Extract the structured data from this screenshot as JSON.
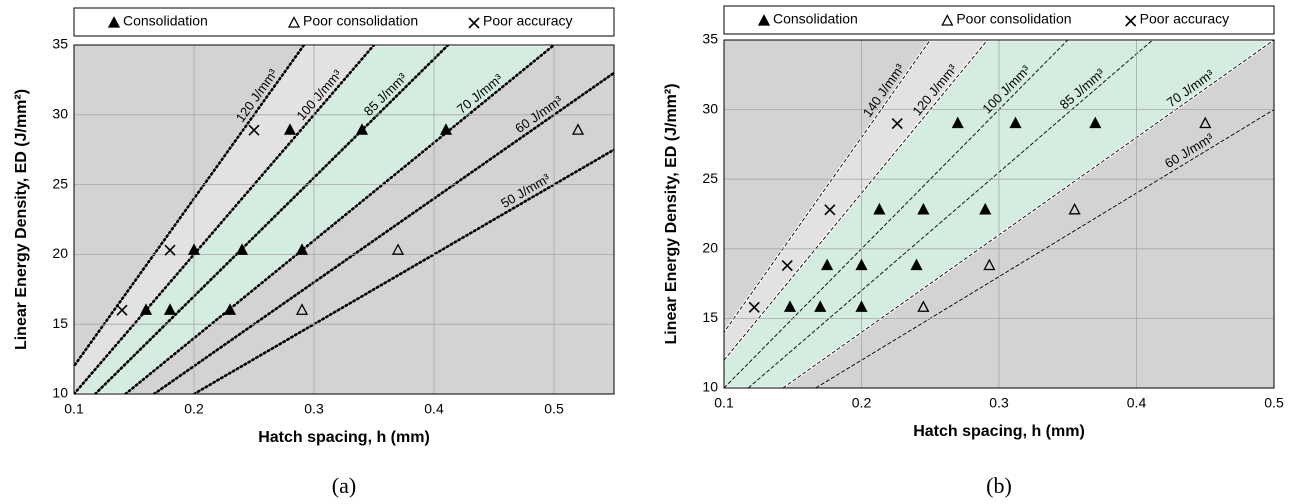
{
  "chart_data": [
    {
      "type": "scatter",
      "caption": "(a)",
      "x_label": "Hatch spacing, h (mm)",
      "y_label": "Linear Energy Density, ED (J/mm²)",
      "xlim": [
        0.1,
        0.55
      ],
      "xticks": [
        0.1,
        0.2,
        0.3,
        0.4,
        0.5
      ],
      "ylim": [
        10,
        35
      ],
      "yticks": [
        10,
        15,
        20,
        25,
        30,
        35
      ],
      "grid": true,
      "line_style": "dotted",
      "lines": [
        {
          "label": "120 J/mm³",
          "value": 120
        },
        {
          "label": "100 J/mm³",
          "value": 100
        },
        {
          "label": "85 J/mm³",
          "value": 85
        },
        {
          "label": "70 J/mm³",
          "value": 70
        },
        {
          "label": "60 J/mm³",
          "value": 60
        },
        {
          "label": "50 J/mm³",
          "value": 50
        }
      ],
      "series": [
        {
          "name": "Consolidation",
          "color": "#000000",
          "marker": "triangle-filled",
          "x": [
            0.16,
            0.18,
            0.23,
            0.2,
            0.24,
            0.29,
            0.28,
            0.34,
            0.41
          ],
          "values": [
            16,
            16,
            16,
            20.3,
            20.3,
            20.3,
            28.9,
            28.9,
            28.9
          ]
        },
        {
          "name": "Poor consolidation",
          "color": "#000000",
          "marker": "triangle-open",
          "x": [
            0.29,
            0.37,
            0.52
          ],
          "values": [
            16,
            20.3,
            28.9
          ]
        },
        {
          "name": "Poor accuracy",
          "color": "#000000",
          "marker": "x",
          "x": [
            0.14,
            0.18,
            0.25
          ],
          "values": [
            16,
            20.3,
            28.9
          ]
        }
      ]
    },
    {
      "type": "scatter",
      "caption": "(b)",
      "x_label": "Hatch spacing, h (mm)",
      "y_label": "Linear Energy Density, ED (J/mm²)",
      "xlim": [
        0.1,
        0.5
      ],
      "xticks": [
        0.1,
        0.2,
        0.3,
        0.4,
        0.5
      ],
      "ylim": [
        10,
        35
      ],
      "yticks": [
        10,
        15,
        20,
        25,
        30,
        35
      ],
      "grid": true,
      "line_style": "dashed",
      "lines": [
        {
          "label": "140 J/mm³",
          "value": 140
        },
        {
          "label": "120 J/mm³",
          "value": 120
        },
        {
          "label": "100 J/mm³",
          "value": 100
        },
        {
          "label": "85 J/mm³",
          "value": 85
        },
        {
          "label": "70 J/mm³",
          "value": 70
        },
        {
          "label": "60 J/mm³",
          "value": 60
        }
      ],
      "series": [
        {
          "name": "Consolidation",
          "color": "#000000",
          "marker": "triangle-filled",
          "x": [
            0.148,
            0.17,
            0.2,
            0.175,
            0.2,
            0.24,
            0.213,
            0.245,
            0.29,
            0.27,
            0.312,
            0.37
          ],
          "values": [
            15.8,
            15.8,
            15.8,
            18.8,
            18.8,
            18.8,
            22.8,
            22.8,
            22.8,
            29,
            29,
            29
          ]
        },
        {
          "name": "Poor consolidation",
          "color": "#000000",
          "marker": "triangle-open",
          "x": [
            0.245,
            0.293,
            0.355,
            0.45
          ],
          "values": [
            15.8,
            18.8,
            22.8,
            29
          ]
        },
        {
          "name": "Poor accuracy",
          "color": "#000000",
          "marker": "x",
          "x": [
            0.122,
            0.146,
            0.177,
            0.226
          ],
          "values": [
            15.8,
            18.8,
            22.8,
            29
          ]
        }
      ]
    }
  ]
}
